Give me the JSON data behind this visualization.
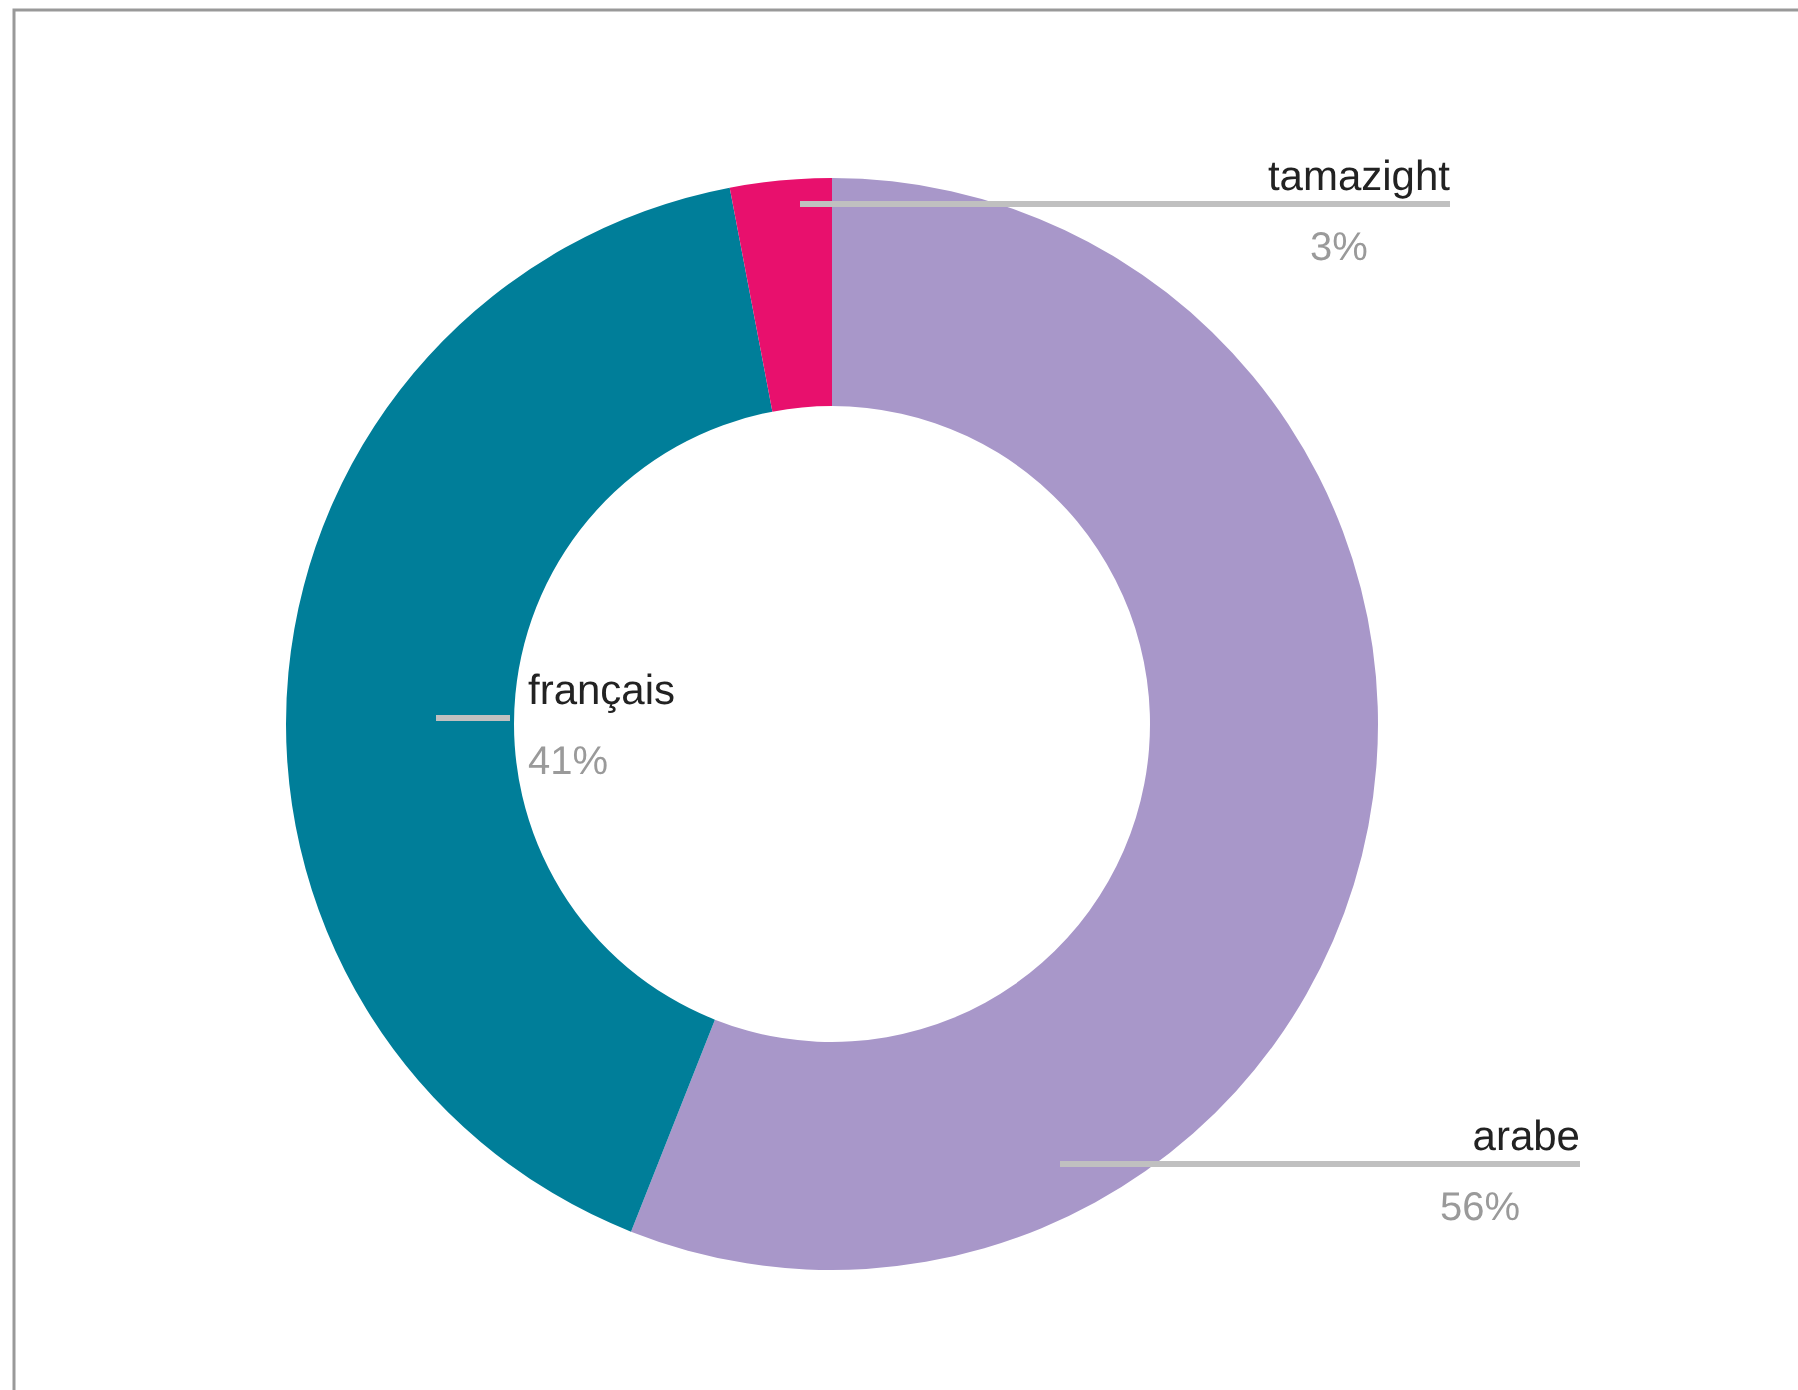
{
  "chart_data": {
    "type": "donut",
    "categories": [
      "arabe",
      "français",
      "tamazight"
    ],
    "values": [
      56,
      41,
      3
    ],
    "colors": [
      "#a897c9",
      "#007e99",
      "#e8106d"
    ],
    "value_labels": [
      "56%",
      "41%",
      "3%"
    ]
  }
}
